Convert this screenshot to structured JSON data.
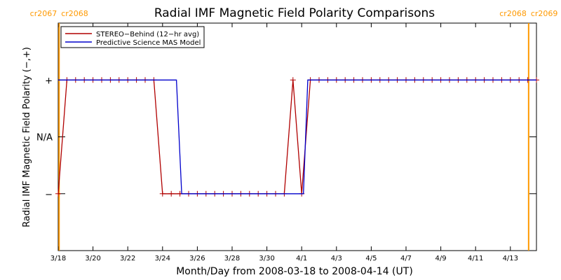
{
  "chart_data": {
    "type": "line",
    "title": "Radial IMF Magnetic Field Polarity Comparisons",
    "xlabel": "Month/Day from 2008-03-18 to 2008-04-14 (UT)",
    "ylabel": "Radial IMF Magnetic Field Polarity (−,+)",
    "xlim": [
      0,
      27.5
    ],
    "ylim": [
      -2,
      2
    ],
    "x_ticks": [
      {
        "x": 0,
        "label": "3/18"
      },
      {
        "x": 2,
        "label": "3/20"
      },
      {
        "x": 4,
        "label": "3/22"
      },
      {
        "x": 6,
        "label": "3/24"
      },
      {
        "x": 8,
        "label": "3/26"
      },
      {
        "x": 10,
        "label": "3/28"
      },
      {
        "x": 12,
        "label": "3/30"
      },
      {
        "x": 14,
        "label": "4/1"
      },
      {
        "x": 16,
        "label": "4/3"
      },
      {
        "x": 18,
        "label": "4/5"
      },
      {
        "x": 20,
        "label": "4/7"
      },
      {
        "x": 22,
        "label": "4/9"
      },
      {
        "x": 24,
        "label": "4/11"
      },
      {
        "x": 26,
        "label": "4/13"
      }
    ],
    "y_ticks": [
      {
        "y": 1,
        "label": "+"
      },
      {
        "y": 0,
        "label": "N/A"
      },
      {
        "y": -1,
        "label": "−"
      }
    ],
    "carrington_markers": [
      {
        "x": 0.05,
        "left_label": "cr2067",
        "right_label": "cr2068",
        "color": "#ff9900"
      },
      {
        "x": 27.05,
        "left_label": "cr2068",
        "right_label": "cr2069",
        "color": "#ff9900"
      }
    ],
    "legend": {
      "position": "top-left"
    },
    "series": [
      {
        "name": "STEREO−Behind (12−hr avg)",
        "color": "#b00000",
        "x": [
          0,
          0.5,
          1,
          1.5,
          2,
          2.5,
          3,
          3.5,
          4,
          4.5,
          5,
          5.5,
          6,
          6.5,
          7,
          7.5,
          8,
          8.5,
          9,
          9.5,
          10,
          10.5,
          11,
          11.5,
          12,
          12.5,
          13,
          13.5,
          14,
          14.5,
          15,
          15.5,
          16,
          16.5,
          17,
          17.5,
          18,
          18.5,
          19,
          19.5,
          20,
          20.5,
          21,
          21.5,
          22,
          22.5,
          23,
          23.5,
          24,
          24.5,
          25,
          25.5,
          26,
          26.5,
          27,
          27.5
        ],
        "y": [
          -1,
          1,
          1,
          1,
          1,
          1,
          1,
          1,
          1,
          1,
          1,
          1,
          -1,
          -1,
          -1,
          -1,
          -1,
          -1,
          -1,
          -1,
          -1,
          -1,
          -1,
          -1,
          -1,
          -1,
          -1,
          1,
          -1,
          1,
          1,
          1,
          1,
          1,
          1,
          1,
          1,
          1,
          1,
          1,
          1,
          1,
          1,
          1,
          1,
          1,
          1,
          1,
          1,
          1,
          1,
          1,
          1,
          1,
          1,
          1
        ]
      },
      {
        "name": "Predictive Science MAS Model",
        "color": "#0000cc",
        "x": [
          0,
          1,
          6.8,
          7.1,
          14.1,
          14.35,
          27.5
        ],
        "y": [
          1,
          1,
          1,
          -1,
          -1,
          1,
          1
        ]
      }
    ]
  }
}
